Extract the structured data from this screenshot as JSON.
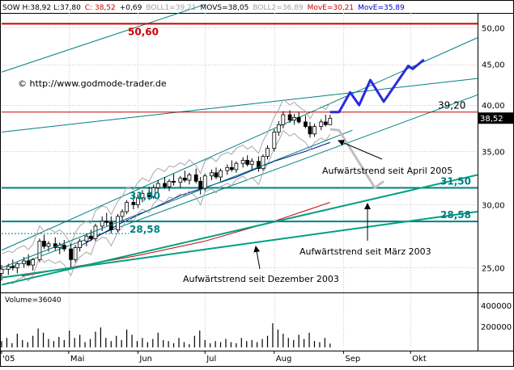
{
  "header": {
    "items": [
      {
        "text": "SOW H:38,92 L:37,80",
        "color": "#000000"
      },
      {
        "text": "C: 38,52",
        "color": "#cc0000"
      },
      {
        "text": "+0,69",
        "color": "#000000"
      },
      {
        "text": "BOLL1=39,21",
        "color": "#a0a0a0"
      },
      {
        "text": "MOVS=38,05",
        "color": "#000000"
      },
      {
        "text": "BOLL2=36,89",
        "color": "#a0a0a0"
      },
      {
        "text": "MovE=30,21",
        "color": "#cc0000"
      },
      {
        "text": "MovE=35,89",
        "color": "#0000cc"
      }
    ]
  },
  "watermark": "© http://www.godmode-trader.de",
  "colors": {
    "background": "#ffffff",
    "candle_up": "#ffffff",
    "candle_down": "#000000",
    "trend_green": "#00a080",
    "channel_teal": "#008080",
    "resistance_red": "#cc0000",
    "projection_blue": "#2a2ae0",
    "projection_gray": "#c0c0c0",
    "ma_red": "#cc0000",
    "ma_blue": "#000099",
    "boll_gray": "#a8a8a8",
    "last_price_box": "#000000"
  },
  "chart_data": [
    {
      "type": "candlestick",
      "y_scale": "log",
      "ylim": [
        23.5,
        52.2
      ],
      "yticks": [
        25,
        30,
        35,
        40,
        45,
        50
      ],
      "ytick_labels": [
        "25,00",
        "30,00",
        "35,00",
        "40,00",
        "45,00",
        "50,00"
      ],
      "xtick_labels": [
        "'05",
        "Mai",
        "Jun",
        "Jul",
        "Aug",
        "Sep",
        "Okt"
      ],
      "x_domain": [
        "2005-04-01",
        "2005-10-31"
      ],
      "xtick_dates": [
        "2005-04-01",
        "2005-05-01",
        "2005-06-01",
        "2005-07-01",
        "2005-08-01",
        "2005-09-01",
        "2005-10-01"
      ],
      "last_price": "38,52",
      "horizontal_levels": [
        {
          "value": 50.6,
          "label": "50,60",
          "color": "#cc0000"
        },
        {
          "value": 39.2,
          "label": "39,20",
          "color": "#cc0000"
        },
        {
          "value": 31.5,
          "label": "31,50",
          "color": "#008080"
        },
        {
          "value": 28.58,
          "label": "28,58",
          "color": "#008080"
        }
      ],
      "trendlines": [
        {
          "label": "Aufwärtstrend seit April 2005",
          "from": [
            "2005-04-01",
            25.0
          ],
          "to": [
            "2005-09-05",
            37.2
          ],
          "color": "#008080"
        },
        {
          "label": "Aufwärtstrend seit März 2003",
          "from": [
            "2005-04-01",
            23.8
          ],
          "to": [
            "2005-10-31",
            32.7
          ],
          "color": "#00a080"
        },
        {
          "label": "Aufwärtstrend seit Dezember 2003",
          "from": [
            "2005-04-01",
            24.3
          ],
          "to": [
            "2005-10-31",
            29.4
          ],
          "color": "#00a080"
        }
      ],
      "channel_lines": [
        {
          "from": [
            "2005-04-01",
            26.3
          ],
          "to": [
            "2005-10-31",
            48.6
          ]
        },
        {
          "from": [
            "2005-04-01",
            24.8
          ],
          "to": [
            "2005-10-31",
            41.2
          ]
        },
        {
          "from": [
            "2005-04-01",
            44.0
          ],
          "to": [
            "2005-07-01",
            53.5
          ]
        },
        {
          "from": [
            "2005-04-01",
            37.0
          ],
          "to": [
            "2005-10-31",
            43.2
          ]
        }
      ],
      "moving_averages": [
        {
          "name": "MovE=30,21",
          "color": "#cc0000",
          "points": [
            [
              "2005-04-10",
              24.4
            ],
            [
              "2005-05-01",
              25.0
            ],
            [
              "2005-06-01",
              25.9
            ],
            [
              "2005-07-01",
              27.0
            ],
            [
              "2005-08-01",
              28.6
            ],
            [
              "2005-08-26",
              30.2
            ]
          ]
        },
        {
          "name": "MovE=35,89",
          "color": "#000099",
          "points": [
            [
              "2005-05-05",
              26.5
            ],
            [
              "2005-05-25",
              28.5
            ],
            [
              "2005-06-20",
              30.8
            ],
            [
              "2005-07-15",
              32.5
            ],
            [
              "2005-08-01",
              34.0
            ],
            [
              "2005-08-15",
              35.0
            ],
            [
              "2005-08-26",
              35.9
            ]
          ]
        }
      ],
      "projections": [
        {
          "name": "up",
          "color": "#2a2ae0",
          "points": [
            [
              "2005-08-26",
              39.2
            ],
            [
              "2005-08-30",
              39.2
            ],
            [
              "2005-09-04",
              41.5
            ],
            [
              "2005-09-08",
              40.0
            ],
            [
              "2005-09-13",
              43.0
            ],
            [
              "2005-09-19",
              40.4
            ],
            [
              "2005-09-30",
              44.8
            ],
            [
              "2005-10-02",
              44.4
            ],
            [
              "2005-10-07",
              45.6
            ]
          ]
        },
        {
          "name": "down",
          "color": "#c0c0c0",
          "points": [
            [
              "2005-08-26",
              37.3
            ],
            [
              "2005-08-30",
              37.2
            ],
            [
              "2005-09-15",
              31.5
            ],
            [
              "2005-09-19",
              32.1
            ]
          ]
        }
      ],
      "candles": [
        [
          "2005-04-01",
          24.6,
          25.2,
          24.1,
          24.9
        ],
        [
          "2005-04-04",
          24.9,
          25.3,
          24.5,
          25.1
        ],
        [
          "2005-04-06",
          25.1,
          25.6,
          24.8,
          25.0
        ],
        [
          "2005-04-08",
          25.0,
          25.4,
          24.6,
          25.3
        ],
        [
          "2005-04-11",
          25.3,
          25.8,
          25.0,
          25.5
        ],
        [
          "2005-04-13",
          25.5,
          26.0,
          25.1,
          25.2
        ],
        [
          "2005-04-15",
          25.2,
          25.7,
          24.8,
          25.6
        ],
        [
          "2005-04-18",
          25.6,
          27.2,
          25.4,
          27.0
        ],
        [
          "2005-04-20",
          27.0,
          27.5,
          26.4,
          26.6
        ],
        [
          "2005-04-22",
          26.6,
          27.0,
          26.2,
          26.8
        ],
        [
          "2005-04-25",
          26.8,
          27.3,
          26.3,
          26.5
        ],
        [
          "2005-04-27",
          26.5,
          26.9,
          26.0,
          26.7
        ],
        [
          "2005-04-29",
          26.7,
          27.1,
          26.2,
          26.4
        ],
        [
          "2005-05-02",
          26.4,
          26.8,
          25.0,
          25.6
        ],
        [
          "2005-05-04",
          25.6,
          26.7,
          25.4,
          26.5
        ],
        [
          "2005-05-06",
          26.5,
          27.2,
          26.2,
          27.0
        ],
        [
          "2005-05-09",
          27.0,
          27.6,
          26.6,
          27.4
        ],
        [
          "2005-05-11",
          27.4,
          27.9,
          27.0,
          27.2
        ],
        [
          "2005-05-13",
          27.2,
          28.4,
          27.0,
          28.2
        ],
        [
          "2005-05-16",
          28.2,
          29.0,
          27.8,
          28.6
        ],
        [
          "2005-05-18",
          28.6,
          29.3,
          28.2,
          28.5
        ],
        [
          "2005-05-20",
          28.5,
          29.0,
          27.6,
          27.9
        ],
        [
          "2005-05-23",
          27.9,
          29.2,
          27.7,
          29.0
        ],
        [
          "2005-05-25",
          29.0,
          29.6,
          28.6,
          29.4
        ],
        [
          "2005-05-27",
          29.4,
          30.4,
          29.2,
          30.2
        ],
        [
          "2005-05-30",
          30.2,
          30.8,
          29.6,
          30.0
        ],
        [
          "2005-06-01",
          30.0,
          30.9,
          29.7,
          30.6
        ],
        [
          "2005-06-03",
          30.6,
          31.3,
          30.2,
          31.0
        ],
        [
          "2005-06-06",
          31.0,
          31.6,
          30.4,
          30.7
        ],
        [
          "2005-06-08",
          30.7,
          31.8,
          30.5,
          31.5
        ],
        [
          "2005-06-10",
          31.5,
          32.2,
          31.0,
          31.9
        ],
        [
          "2005-06-13",
          31.9,
          32.5,
          31.4,
          31.6
        ],
        [
          "2005-06-15",
          31.6,
          32.3,
          31.2,
          32.1
        ],
        [
          "2005-06-17",
          32.1,
          32.8,
          31.7,
          32.0
        ],
        [
          "2005-06-20",
          32.0,
          32.6,
          31.5,
          32.4
        ],
        [
          "2005-06-22",
          32.4,
          33.1,
          32.0,
          32.2
        ],
        [
          "2005-06-24",
          32.2,
          32.9,
          31.8,
          32.7
        ],
        [
          "2005-06-27",
          32.7,
          33.3,
          31.9,
          32.1
        ],
        [
          "2005-06-29",
          32.1,
          32.5,
          30.9,
          31.4
        ],
        [
          "2005-07-01",
          31.4,
          32.8,
          31.2,
          32.6
        ],
        [
          "2005-07-04",
          32.6,
          33.2,
          32.2,
          32.9
        ],
        [
          "2005-07-06",
          32.9,
          33.4,
          32.3,
          32.5
        ],
        [
          "2005-07-08",
          32.5,
          33.3,
          32.1,
          33.1
        ],
        [
          "2005-07-11",
          33.1,
          33.7,
          32.7,
          33.4
        ],
        [
          "2005-07-13",
          33.4,
          34.1,
          33.0,
          33.2
        ],
        [
          "2005-07-15",
          33.2,
          34.0,
          32.9,
          33.8
        ],
        [
          "2005-07-18",
          33.8,
          34.4,
          33.4,
          34.1
        ],
        [
          "2005-07-20",
          34.1,
          34.6,
          33.5,
          33.7
        ],
        [
          "2005-07-22",
          33.7,
          34.3,
          33.2,
          34.0
        ],
        [
          "2005-07-25",
          34.0,
          34.5,
          33.0,
          33.3
        ],
        [
          "2005-07-27",
          33.3,
          34.7,
          33.1,
          34.5
        ],
        [
          "2005-07-29",
          34.5,
          35.6,
          34.2,
          35.3
        ],
        [
          "2005-08-01",
          35.3,
          37.3,
          35.0,
          37.0
        ],
        [
          "2005-08-03",
          37.0,
          38.2,
          36.6,
          37.8
        ],
        [
          "2005-08-05",
          37.8,
          39.3,
          37.4,
          38.9
        ],
        [
          "2005-08-08",
          38.9,
          39.4,
          38.0,
          38.3
        ],
        [
          "2005-08-10",
          38.3,
          39.0,
          37.8,
          38.6
        ],
        [
          "2005-08-12",
          38.6,
          39.2,
          37.9,
          38.1
        ],
        [
          "2005-08-15",
          38.1,
          38.8,
          37.4,
          37.6
        ],
        [
          "2005-08-17",
          37.6,
          38.1,
          36.4,
          36.8
        ],
        [
          "2005-08-19",
          36.8,
          37.9,
          36.5,
          37.6
        ],
        [
          "2005-08-22",
          37.6,
          38.4,
          37.2,
          38.1
        ],
        [
          "2005-08-24",
          38.1,
          38.9,
          37.6,
          37.8
        ],
        [
          "2005-08-26",
          37.8,
          38.9,
          37.8,
          38.5
        ]
      ]
    },
    {
      "type": "bar",
      "title": "Volume=36040",
      "ylim": [
        0,
        500000
      ],
      "yticks": [
        200000,
        400000
      ],
      "ytick_labels": [
        "200000",
        "400000"
      ],
      "values": [
        60000,
        90000,
        40000,
        130000,
        70000,
        50000,
        110000,
        180000,
        140000,
        80000,
        60000,
        100000,
        70000,
        160000,
        90000,
        120000,
        50000,
        80000,
        150000,
        190000,
        90000,
        60000,
        110000,
        70000,
        170000,
        120000,
        60000,
        90000,
        50000,
        80000,
        140000,
        70000,
        60000,
        40000,
        90000,
        50000,
        30000,
        110000,
        160000,
        70000,
        40000,
        60000,
        50000,
        80000,
        50000,
        40000,
        90000,
        60000,
        70000,
        50000,
        80000,
        110000,
        230000,
        170000,
        130000,
        90000,
        70000,
        120000,
        80000,
        140000,
        60000,
        50000,
        90000,
        36040
      ]
    }
  ],
  "annotations": [
    {
      "text": "50,60",
      "color": "#cc0000",
      "bold": true
    },
    {
      "text": "39,20",
      "color": "#000000",
      "bold": false
    },
    {
      "text": "31,50",
      "color": "#008080",
      "bold": true
    },
    {
      "text": "31,50",
      "color": "#008080",
      "bold": true
    },
    {
      "text": "28,58",
      "color": "#008080",
      "bold": true
    },
    {
      "text": "28,58",
      "color": "#008080",
      "bold": true
    },
    {
      "text": "Aufwärtstrend seit April 2005",
      "color": "#000000",
      "bold": false
    },
    {
      "text": "Aufwärtstrend seit März 2003",
      "color": "#000000",
      "bold": false
    },
    {
      "text": "Aufwärtstrend seit Dezember 2003",
      "color": "#000000",
      "bold": false
    }
  ]
}
